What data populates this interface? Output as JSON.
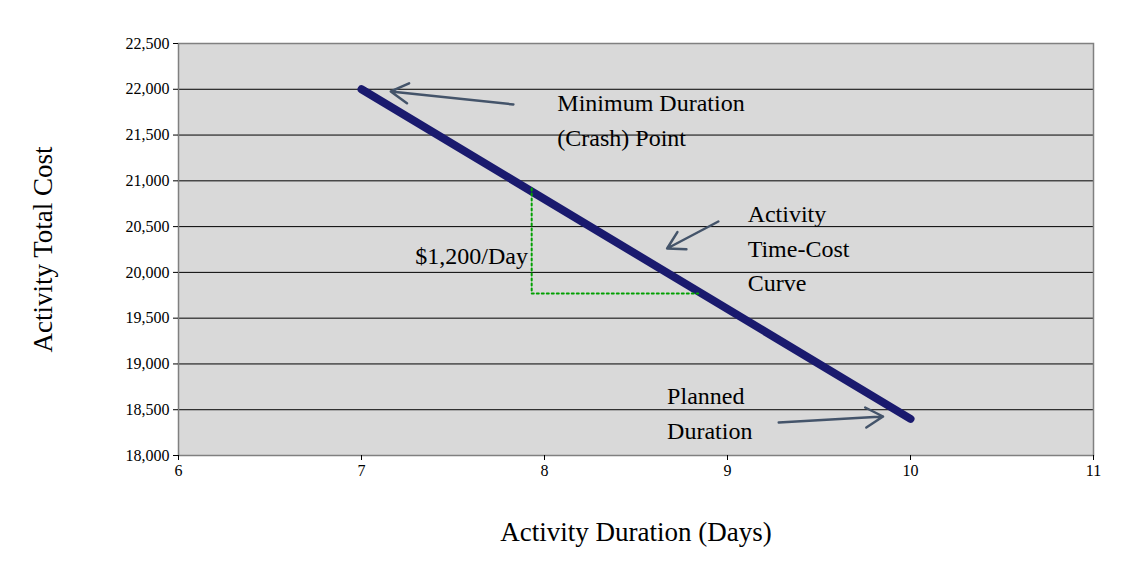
{
  "chart_data": {
    "type": "line",
    "x_label": "Activity Duration (Days)",
    "y_label": "Activity Total Cost",
    "x": [
      7,
      10
    ],
    "values": [
      22000,
      18400
    ],
    "color": "#1a1a6e",
    "xlim": [
      6,
      11
    ],
    "xticks": [
      6,
      7,
      8,
      9,
      10,
      11
    ],
    "ylim": [
      18000,
      22500
    ],
    "yticks": [
      {
        "value": 18000,
        "label": "18,000"
      },
      {
        "value": 18500,
        "label": "18,500"
      },
      {
        "value": 19000,
        "label": "19,000"
      },
      {
        "value": 19500,
        "label": "19,500"
      },
      {
        "value": 20000,
        "label": "20,000"
      },
      {
        "value": 20500,
        "label": "20,500"
      },
      {
        "value": 21000,
        "label": "21,000"
      },
      {
        "value": 21500,
        "label": "21,500"
      },
      {
        "value": 22000,
        "label": "22,000"
      },
      {
        "value": 22500,
        "label": "22,500"
      }
    ],
    "grid": true,
    "annotations": [
      {
        "text": [
          "Minimum Duration",
          "(Crash) Point"
        ],
        "x": 8.07,
        "y": 21690,
        "arrow": [
          7.83,
          21834,
          7.16,
          21976
        ]
      },
      {
        "text": [
          "Activity",
          "Time-Cost",
          "Curve"
        ],
        "x": 9.11,
        "y": 20294,
        "arrow": [
          8.95,
          20556,
          8.67,
          20261
        ]
      },
      {
        "text": [
          "$1,200/Day"
        ],
        "x": 7.91,
        "y": 20217,
        "slope": {
          "x": [
            7.93,
            8.84
          ],
          "y": [
            20916,
            19770
          ]
        },
        "color": "#00a000"
      },
      {
        "text": [
          "Planned",
          "Duration"
        ],
        "x": 8.67,
        "y": 18492,
        "arrow": [
          9.28,
          18361,
          9.85,
          18426
        ]
      }
    ]
  }
}
